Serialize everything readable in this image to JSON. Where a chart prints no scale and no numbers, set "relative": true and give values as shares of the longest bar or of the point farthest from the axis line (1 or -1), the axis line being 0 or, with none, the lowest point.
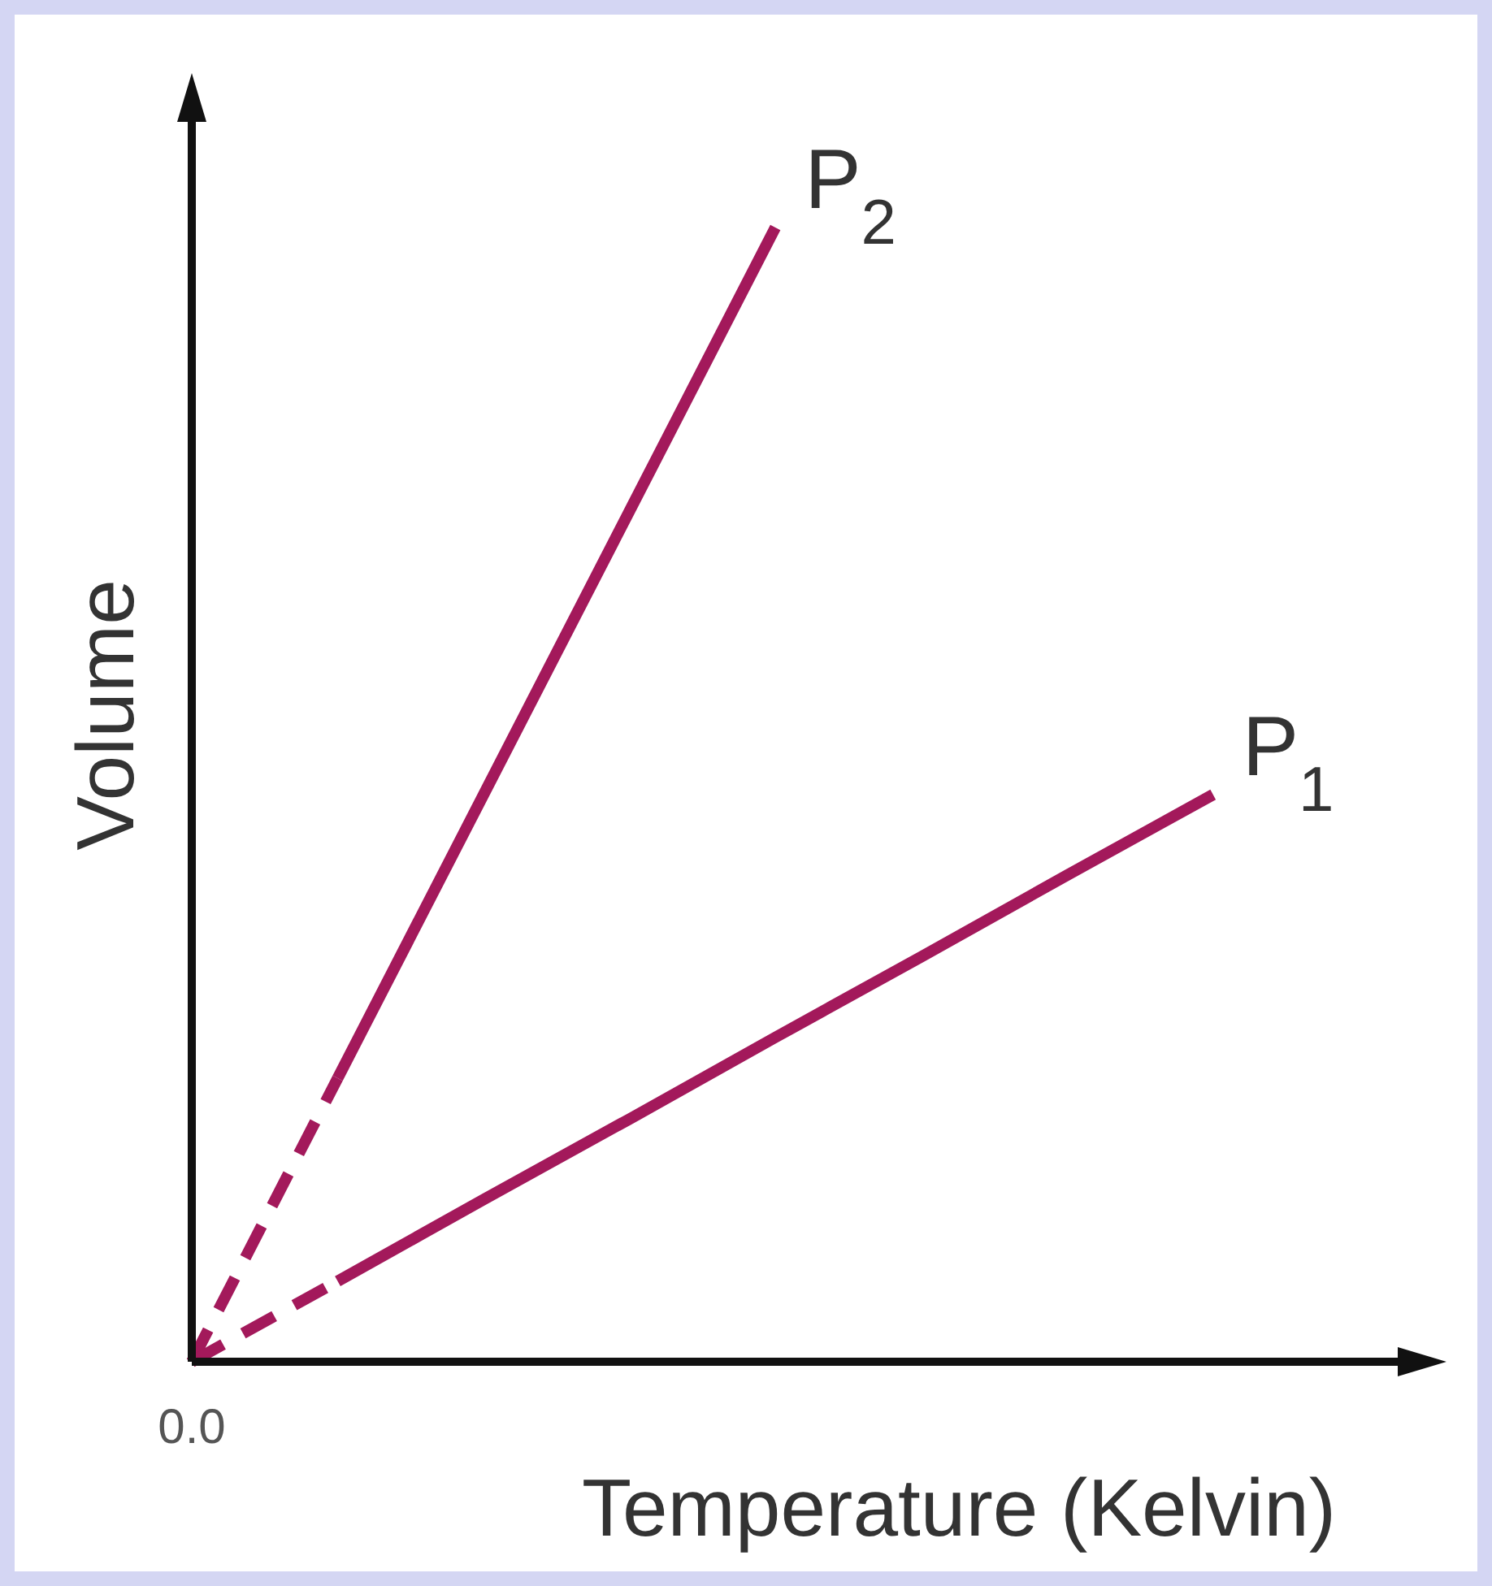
{
  "chart_data": {
    "type": "line",
    "relative": true,
    "xlabel": "Temperature (Kelvin)",
    "ylabel": "Volume",
    "annotations": [
      "0.0"
    ],
    "categories": [
      null,
      null,
      null,
      null,
      null,
      null,
      null,
      null
    ],
    "series": [
      {
        "name": "P$_{2}$",
        "color": "#a3195b",
        "line_style": "solid",
        "values": [
          null,
          0.25,
          0.5,
          0.75,
          1,
          null,
          null,
          null
        ]
      },
      {
        "color": "#a3195b",
        "line_style": "dashed",
        "values": [
          0,
          0.25,
          null,
          null,
          null,
          null,
          null,
          null
        ]
      },
      {
        "name": "P$_{1}$",
        "color": "#a3195b",
        "line_style": "solid",
        "values": [
          null,
          0.071,
          0.143,
          0.214,
          0.286,
          0.357,
          0.429,
          0.5
        ]
      },
      {
        "color": "#a3195b",
        "line_style": "dashed",
        "values": [
          0,
          0.071,
          null,
          null,
          null,
          null,
          null,
          null
        ]
      }
    ]
  }
}
